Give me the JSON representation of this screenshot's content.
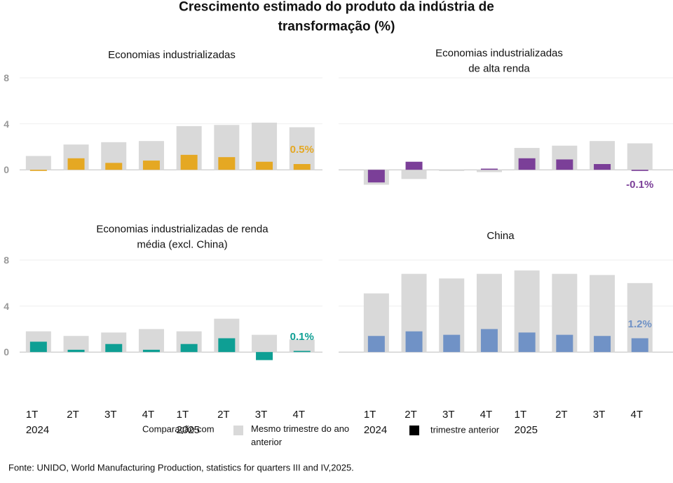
{
  "title": "Crescimento estimado do produto da indústria de transformação (%)",
  "chart_data": [
    {
      "type": "bar",
      "title": "Economias industrializadas",
      "categories": [
        null,
        null,
        null,
        null,
        null,
        null,
        null,
        null
      ],
      "series": [
        {
          "color": "#d9d9d9",
          "values": [
            1.2,
            2.2,
            2.4,
            2.5,
            3.8,
            3.9,
            4.1,
            3.7
          ]
        },
        {
          "color": "#e5a823",
          "values": [
            -0.1,
            1.0,
            0.6,
            0.8,
            1.3,
            1.1,
            0.7,
            0.5
          ],
          "value_labels": [
            null,
            null,
            null,
            null,
            null,
            null,
            null,
            "0.5%"
          ]
        }
      ],
      "ylim": [
        -2,
        8
      ],
      "yticks": [
        0,
        4,
        8
      ],
      "ytick_labels": true,
      "grid": true
    },
    {
      "type": "bar",
      "title": "Economias industrializadas\nde alta renda",
      "categories": [
        null,
        null,
        null,
        null,
        null,
        null,
        null,
        null
      ],
      "series": [
        {
          "color": "#d9d9d9",
          "values": [
            -1.3,
            -0.8,
            -0.1,
            -0.2,
            1.9,
            2.1,
            2.5,
            2.3
          ]
        },
        {
          "color": "#7b3f98",
          "values": [
            -1.1,
            0.7,
            0.0,
            0.1,
            1.0,
            0.9,
            0.5,
            -0.1
          ],
          "value_labels": [
            null,
            null,
            null,
            null,
            null,
            null,
            null,
            "-0.1%"
          ]
        }
      ],
      "ylim": [
        -2,
        8
      ],
      "yticks": [
        0,
        4,
        8
      ],
      "ytick_labels": false,
      "grid": true
    },
    {
      "type": "bar",
      "title": "Economias industrializadas de renda\nmédia (excl. China)",
      "categories": [
        "1T\n2024",
        "2T",
        "3T",
        "4T",
        "1T\n2025",
        "2T",
        "3T",
        "4T"
      ],
      "series": [
        {
          "color": "#d9d9d9",
          "values": [
            1.8,
            1.4,
            1.7,
            2.0,
            1.8,
            2.9,
            1.5,
            1.1
          ]
        },
        {
          "color": "#0e9f94",
          "values": [
            0.9,
            0.2,
            0.7,
            0.2,
            0.7,
            1.2,
            -0.7,
            0.1
          ],
          "value_labels": [
            null,
            null,
            null,
            null,
            null,
            null,
            null,
            "0.1%"
          ]
        }
      ],
      "ylim": [
        -2,
        8
      ],
      "yticks": [
        0,
        4,
        8
      ],
      "ytick_labels": true,
      "grid": true
    },
    {
      "type": "bar",
      "title": "China",
      "categories": [
        "1T\n2024",
        "2T",
        "3T",
        "4T",
        "1T\n2025",
        "2T",
        "3T",
        "4T"
      ],
      "series": [
        {
          "color": "#d9d9d9",
          "values": [
            5.1,
            6.8,
            6.4,
            6.8,
            7.1,
            6.8,
            6.7,
            6.0
          ]
        },
        {
          "color": "#7092c6",
          "values": [
            1.4,
            1.8,
            1.5,
            2.0,
            1.7,
            1.5,
            1.4,
            1.2
          ],
          "value_labels": [
            null,
            null,
            null,
            null,
            null,
            null,
            null,
            "1.2%"
          ]
        }
      ],
      "ylim": [
        -2,
        8
      ],
      "yticks": [
        0,
        4,
        8
      ],
      "ytick_labels": false,
      "grid": true
    }
  ],
  "legend": {
    "title": "Comparação com",
    "items": [
      {
        "name": "Mesmo trimestre do ano anterior",
        "color": "#d9d9d9"
      },
      {
        "name": "trimestre anterior",
        "color": "#000000"
      }
    ]
  },
  "source": "Fonte: UNIDO, World Manufacturing Production, statistics for quarters III and IV,2025."
}
